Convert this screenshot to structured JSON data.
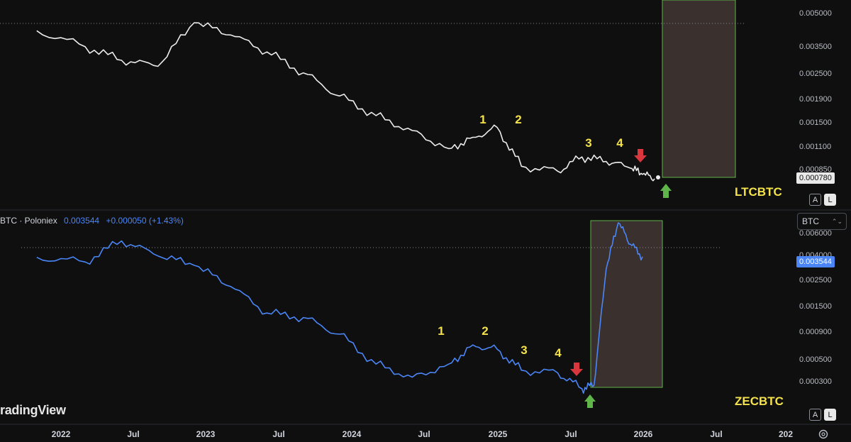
{
  "colors": {
    "background": "#0f0f0f",
    "ltc_line": "#ececec",
    "zec_line": "#4a86f7",
    "annotation": "#f4e24a",
    "arrow_down": "#d9363e",
    "arrow_up": "#5fb54a",
    "zone_fill": "#3a302e",
    "zone_border": "#5fb54a"
  },
  "top_panel": {
    "symbol": "LTCBTC",
    "last_price": "0.000780",
    "scale_buttons": [
      "A",
      "L"
    ]
  },
  "bottom_panel": {
    "symbol": "ZECBTC",
    "legend_name": "BTC · Poloniex",
    "legend_price": "0.003544",
    "legend_change": "+0.000050 (+1.43%)",
    "last_price": "0.003544",
    "currency_select": "BTC",
    "scale_buttons": [
      "A",
      "L"
    ]
  },
  "watermark": "radingView",
  "time_axis": [
    "2022",
    "Jul",
    "2023",
    "Jul",
    "2024",
    "Jul",
    "2025",
    "Jul",
    "2026",
    "Jul",
    "202"
  ],
  "chart_data": [
    {
      "type": "line",
      "symbol": "LTCBTC",
      "log_scale": true,
      "y_ticks": [
        "0.005000",
        "0.003500",
        "0.002500",
        "0.001900",
        "0.001500",
        "0.001100",
        "0.000850"
      ],
      "dotted_reference": 0.0046,
      "x": [
        "2021-11",
        "2022-03",
        "2022-06",
        "2022-09",
        "2022-12",
        "2023-03",
        "2023-06",
        "2023-09",
        "2023-12",
        "2024-03",
        "2024-06",
        "2024-09",
        "2024-11",
        "2025-01",
        "2025-03",
        "2025-06",
        "2025-08",
        "2025-10",
        "2025-12",
        "2026-01",
        "2026-02"
      ],
      "y": [
        0.0042,
        0.0035,
        0.003,
        0.0028,
        0.0046,
        0.004,
        0.0033,
        0.0026,
        0.002,
        0.0016,
        0.00135,
        0.0011,
        0.00125,
        0.0014,
        0.0009,
        0.00085,
        0.001,
        0.00095,
        0.00088,
        0.00082,
        0.00078
      ],
      "annotations": [
        "1",
        "2",
        "3",
        "4"
      ],
      "highlight_zone": "2026-02 onward"
    },
    {
      "type": "line",
      "symbol": "ZECBTC",
      "log_scale": true,
      "y_ticks": [
        "0.006000",
        "0.004000",
        "0.002500",
        "0.001500",
        "0.000900",
        "0.000500",
        "0.000300"
      ],
      "dotted_reference": 0.0045,
      "x": [
        "2021-11",
        "2022-03",
        "2022-06",
        "2022-09",
        "2022-12",
        "2023-03",
        "2023-06",
        "2023-09",
        "2023-12",
        "2024-03",
        "2024-06",
        "2024-09",
        "2024-11",
        "2025-01",
        "2025-03",
        "2025-06",
        "2025-08",
        "2025-09",
        "2025-10",
        "2025-11",
        "2025-12",
        "2026-01"
      ],
      "y": [
        0.0035,
        0.0032,
        0.0048,
        0.0036,
        0.003,
        0.002,
        0.0012,
        0.0011,
        0.0008,
        0.00045,
        0.00035,
        0.00045,
        0.00065,
        0.0006,
        0.0004,
        0.00038,
        0.00028,
        0.0003,
        0.0028,
        0.0068,
        0.0045,
        0.003544
      ],
      "annotations": [
        "1",
        "2",
        "3",
        "4"
      ],
      "highlight_zone": "2025-09 to 2026-02"
    }
  ]
}
